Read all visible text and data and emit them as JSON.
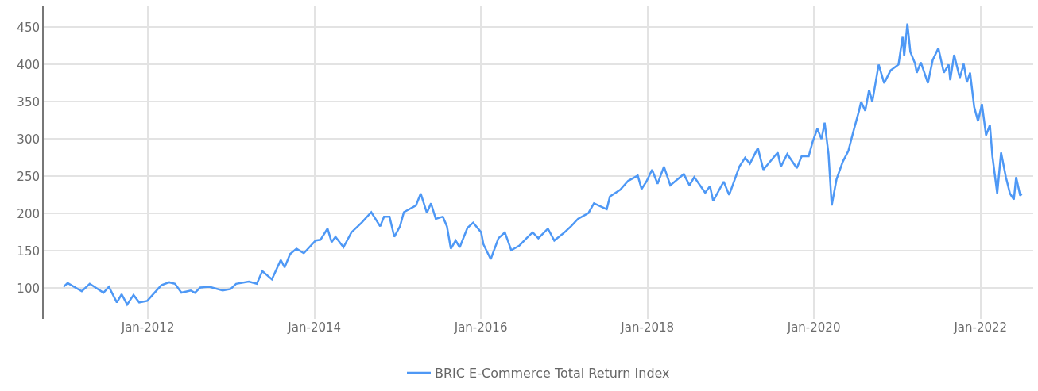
{
  "chart_data": {
    "type": "line",
    "grid": true,
    "legend": "bottom",
    "marker": "none",
    "line_style": "solid",
    "xlim": [
      "2010-10-01",
      "2022-08-20"
    ],
    "xticks": [
      {
        "value": "2012-01-01",
        "label": "Jan-2012"
      },
      {
        "value": "2014-01-01",
        "label": "Jan-2014"
      },
      {
        "value": "2016-01-01",
        "label": "Jan-2016"
      },
      {
        "value": "2018-01-01",
        "label": "Jan-2018"
      },
      {
        "value": "2020-01-01",
        "label": "Jan-2020"
      },
      {
        "value": "2022-01-01",
        "label": "Jan-2022"
      }
    ],
    "ylim": [
      59,
      478
    ],
    "yticks": [
      100,
      150,
      200,
      250,
      300,
      350,
      400,
      450
    ],
    "x": [
      "2010-12-27",
      "2011-01-14",
      "2011-03-17",
      "2011-04-21",
      "2011-06-20",
      "2011-07-14",
      "2011-08-18",
      "2011-09-08",
      "2011-10-02",
      "2011-10-30",
      "2011-11-24",
      "2011-12-29",
      "2012-02-29",
      "2012-04-04",
      "2012-04-29",
      "2012-05-27",
      "2012-07-07",
      "2012-07-25",
      "2012-08-18",
      "2012-09-26",
      "2012-11-24",
      "2012-12-29",
      "2013-01-22",
      "2013-03-19",
      "2013-04-23",
      "2013-05-17",
      "2013-06-28",
      "2013-08-06",
      "2013-08-23",
      "2013-09-16",
      "2013-10-14",
      "2013-11-15",
      "2014-01-06",
      "2014-01-27",
      "2014-02-27",
      "2014-03-17",
      "2014-04-03",
      "2014-05-08",
      "2014-06-12",
      "2014-07-27",
      "2014-09-07",
      "2014-10-16",
      "2014-11-02",
      "2014-11-26",
      "2014-12-17",
      "2015-01-11",
      "2015-01-28",
      "2015-03-22",
      "2015-04-12",
      "2015-05-09",
      "2015-05-27",
      "2015-06-17",
      "2015-07-18",
      "2015-08-05",
      "2015-08-22",
      "2015-09-12",
      "2015-09-30",
      "2015-11-03",
      "2015-11-28",
      "2016-01-02",
      "2016-01-12",
      "2016-02-13",
      "2016-03-18",
      "2016-04-15",
      "2016-05-13",
      "2016-06-17",
      "2016-07-19",
      "2016-08-15",
      "2016-09-09",
      "2016-10-21",
      "2016-11-18",
      "2017-01-02",
      "2017-01-30",
      "2017-03-02",
      "2017-04-17",
      "2017-05-11",
      "2017-07-06",
      "2017-07-20",
      "2017-09-03",
      "2017-10-08",
      "2017-11-19",
      "2017-12-06",
      "2017-12-27",
      "2018-01-21",
      "2018-02-14",
      "2018-03-14",
      "2018-04-11",
      "2018-06-09",
      "2018-07-04",
      "2018-07-25",
      "2018-09-11",
      "2018-10-02",
      "2018-10-16",
      "2018-12-01",
      "2018-12-25",
      "2019-02-08",
      "2019-03-05",
      "2019-03-26",
      "2019-04-30",
      "2019-05-24",
      "2019-07-26",
      "2019-08-09",
      "2019-09-06",
      "2019-10-18",
      "2019-11-08",
      "2019-12-09",
      "2019-12-26",
      "2020-01-16",
      "2020-02-03",
      "2020-02-17",
      "2020-03-05",
      "2020-03-19",
      "2020-04-09",
      "2020-05-07",
      "2020-05-31",
      "2020-06-21",
      "2020-07-16",
      "2020-07-26",
      "2020-08-13",
      "2020-08-30",
      "2020-09-13",
      "2020-10-11",
      "2020-11-04",
      "2020-12-02",
      "2021-01-06",
      "2021-01-24",
      "2021-01-31",
      "2021-02-14",
      "2021-02-27",
      "2021-03-20",
      "2021-03-27",
      "2021-04-14",
      "2021-05-15",
      "2021-06-05",
      "2021-06-30",
      "2021-07-24",
      "2021-08-14",
      "2021-08-21",
      "2021-09-07",
      "2021-10-02",
      "2021-10-19",
      "2021-11-02",
      "2021-11-16",
      "2021-12-04",
      "2021-12-21",
      "2022-01-07",
      "2022-01-25",
      "2022-02-11",
      "2022-02-22",
      "2022-03-15",
      "2022-04-01",
      "2022-04-22",
      "2022-05-10",
      "2022-05-27",
      "2022-06-06",
      "2022-06-24",
      "2022-07-01"
    ],
    "series": [
      {
        "name": "BRIC E-Commerce Total Return Index",
        "color": "#4e98f5",
        "values": [
          102,
          107,
          96,
          106,
          94,
          102,
          81,
          92,
          78,
          91,
          81,
          83,
          104,
          108,
          106,
          94,
          97,
          94,
          101,
          102,
          97,
          99,
          106,
          109,
          106,
          123,
          112,
          138,
          128,
          146,
          153,
          147,
          164,
          165,
          180,
          162,
          169,
          155,
          175,
          188,
          202,
          183,
          196,
          196,
          169,
          183,
          202,
          211,
          227,
          201,
          214,
          193,
          196,
          183,
          153,
          164,
          155,
          181,
          188,
          175,
          159,
          139,
          167,
          175,
          151,
          157,
          167,
          175,
          167,
          180,
          164,
          175,
          183,
          193,
          201,
          214,
          206,
          223,
          232,
          244,
          251,
          233,
          243,
          259,
          240,
          263,
          238,
          253,
          238,
          249,
          228,
          237,
          217,
          243,
          225,
          263,
          275,
          267,
          288,
          259,
          282,
          263,
          280,
          261,
          277,
          277,
          296,
          314,
          300,
          322,
          280,
          211,
          246,
          270,
          284,
          309,
          337,
          350,
          338,
          366,
          350,
          400,
          375,
          392,
          400,
          437,
          411,
          455,
          417,
          401,
          389,
          403,
          375,
          406,
          422,
          389,
          400,
          379,
          413,
          382,
          401,
          376,
          389,
          343,
          324,
          347,
          305,
          319,
          277,
          227,
          282,
          249,
          227,
          219,
          249,
          224,
          227
        ]
      }
    ]
  }
}
